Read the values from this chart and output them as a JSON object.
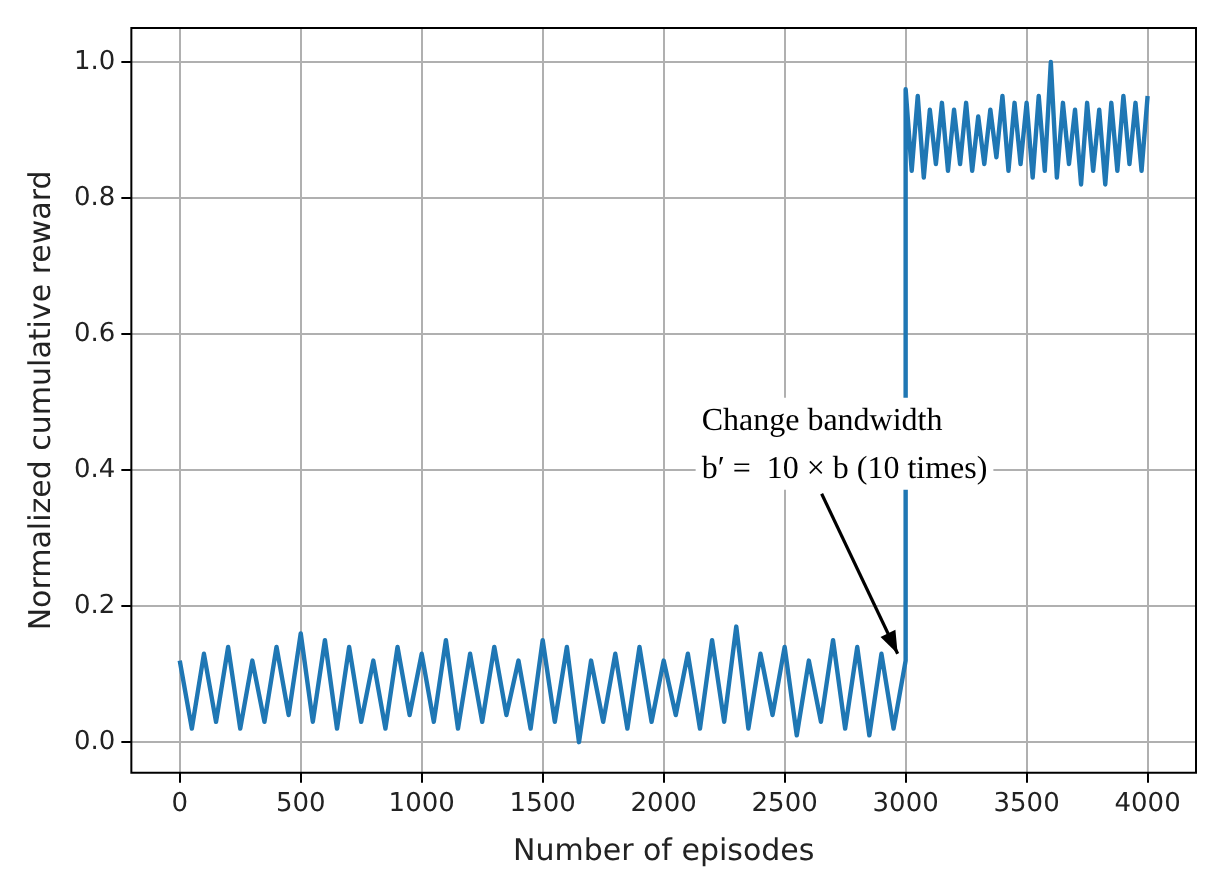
{
  "chart_data": {
    "type": "line",
    "xlabel": "Number of episodes",
    "ylabel": "Normalized cumulative reward",
    "x": [
      0,
      50,
      100,
      150,
      200,
      250,
      300,
      350,
      400,
      450,
      500,
      550,
      600,
      650,
      700,
      750,
      800,
      850,
      900,
      950,
      1000,
      1050,
      1100,
      1150,
      1200,
      1250,
      1300,
      1350,
      1400,
      1450,
      1500,
      1550,
      1600,
      1650,
      1700,
      1750,
      1800,
      1850,
      1900,
      1950,
      2000,
      2050,
      2100,
      2150,
      2200,
      2250,
      2300,
      2350,
      2400,
      2450,
      2500,
      2550,
      2600,
      2650,
      2700,
      2750,
      2800,
      2850,
      2900,
      2950,
      3000,
      3000,
      3025,
      3050,
      3075,
      3100,
      3125,
      3150,
      3175,
      3200,
      3225,
      3250,
      3275,
      3300,
      3325,
      3350,
      3375,
      3400,
      3425,
      3450,
      3475,
      3500,
      3525,
      3550,
      3575,
      3600,
      3625,
      3650,
      3675,
      3700,
      3725,
      3750,
      3775,
      3800,
      3825,
      3850,
      3875,
      3900,
      3925,
      3950,
      3975,
      4000
    ],
    "series": [
      {
        "color": "#1f77b4",
        "values": [
          0.12,
          0.02,
          0.13,
          0.03,
          0.14,
          0.02,
          0.12,
          0.03,
          0.14,
          0.04,
          0.16,
          0.03,
          0.15,
          0.02,
          0.14,
          0.03,
          0.12,
          0.02,
          0.14,
          0.04,
          0.13,
          0.03,
          0.15,
          0.02,
          0.13,
          0.03,
          0.14,
          0.04,
          0.12,
          0.02,
          0.15,
          0.03,
          0.14,
          0.0,
          0.12,
          0.03,
          0.13,
          0.02,
          0.14,
          0.03,
          0.12,
          0.04,
          0.13,
          0.02,
          0.15,
          0.03,
          0.17,
          0.02,
          0.13,
          0.04,
          0.14,
          0.01,
          0.12,
          0.03,
          0.15,
          0.02,
          0.14,
          0.01,
          0.13,
          0.02,
          0.12,
          0.96,
          0.84,
          0.95,
          0.83,
          0.93,
          0.85,
          0.94,
          0.84,
          0.93,
          0.85,
          0.94,
          0.84,
          0.92,
          0.85,
          0.93,
          0.86,
          0.95,
          0.84,
          0.94,
          0.85,
          0.94,
          0.83,
          0.95,
          0.84,
          1.0,
          0.83,
          0.94,
          0.85,
          0.93,
          0.82,
          0.94,
          0.84,
          0.93,
          0.82,
          0.94,
          0.84,
          0.95,
          0.85,
          0.94,
          0.84,
          0.95
        ]
      }
    ],
    "xlim": [
      -200,
      4200
    ],
    "xticks": [
      0,
      500,
      1000,
      1500,
      2000,
      2500,
      3000,
      3500,
      4000
    ],
    "ylim": [
      -0.045,
      1.05
    ],
    "yticks": [
      {
        "value": 0,
        "label": "0.0"
      },
      {
        "value": 0.2,
        "label": "0.2"
      },
      {
        "value": 0.4,
        "label": "0.4"
      },
      {
        "value": 0.6,
        "label": "0.6"
      },
      {
        "value": 0.8,
        "label": "0.8"
      },
      {
        "value": 1,
        "label": "1.0"
      }
    ],
    "grid": true,
    "line_style": "solid",
    "marker": "none",
    "annotations": [
      {
        "text": "Change bandwidth\nb′ =  10 × b (10 times)",
        "x": 3000,
        "y": 0.13
      }
    ]
  }
}
